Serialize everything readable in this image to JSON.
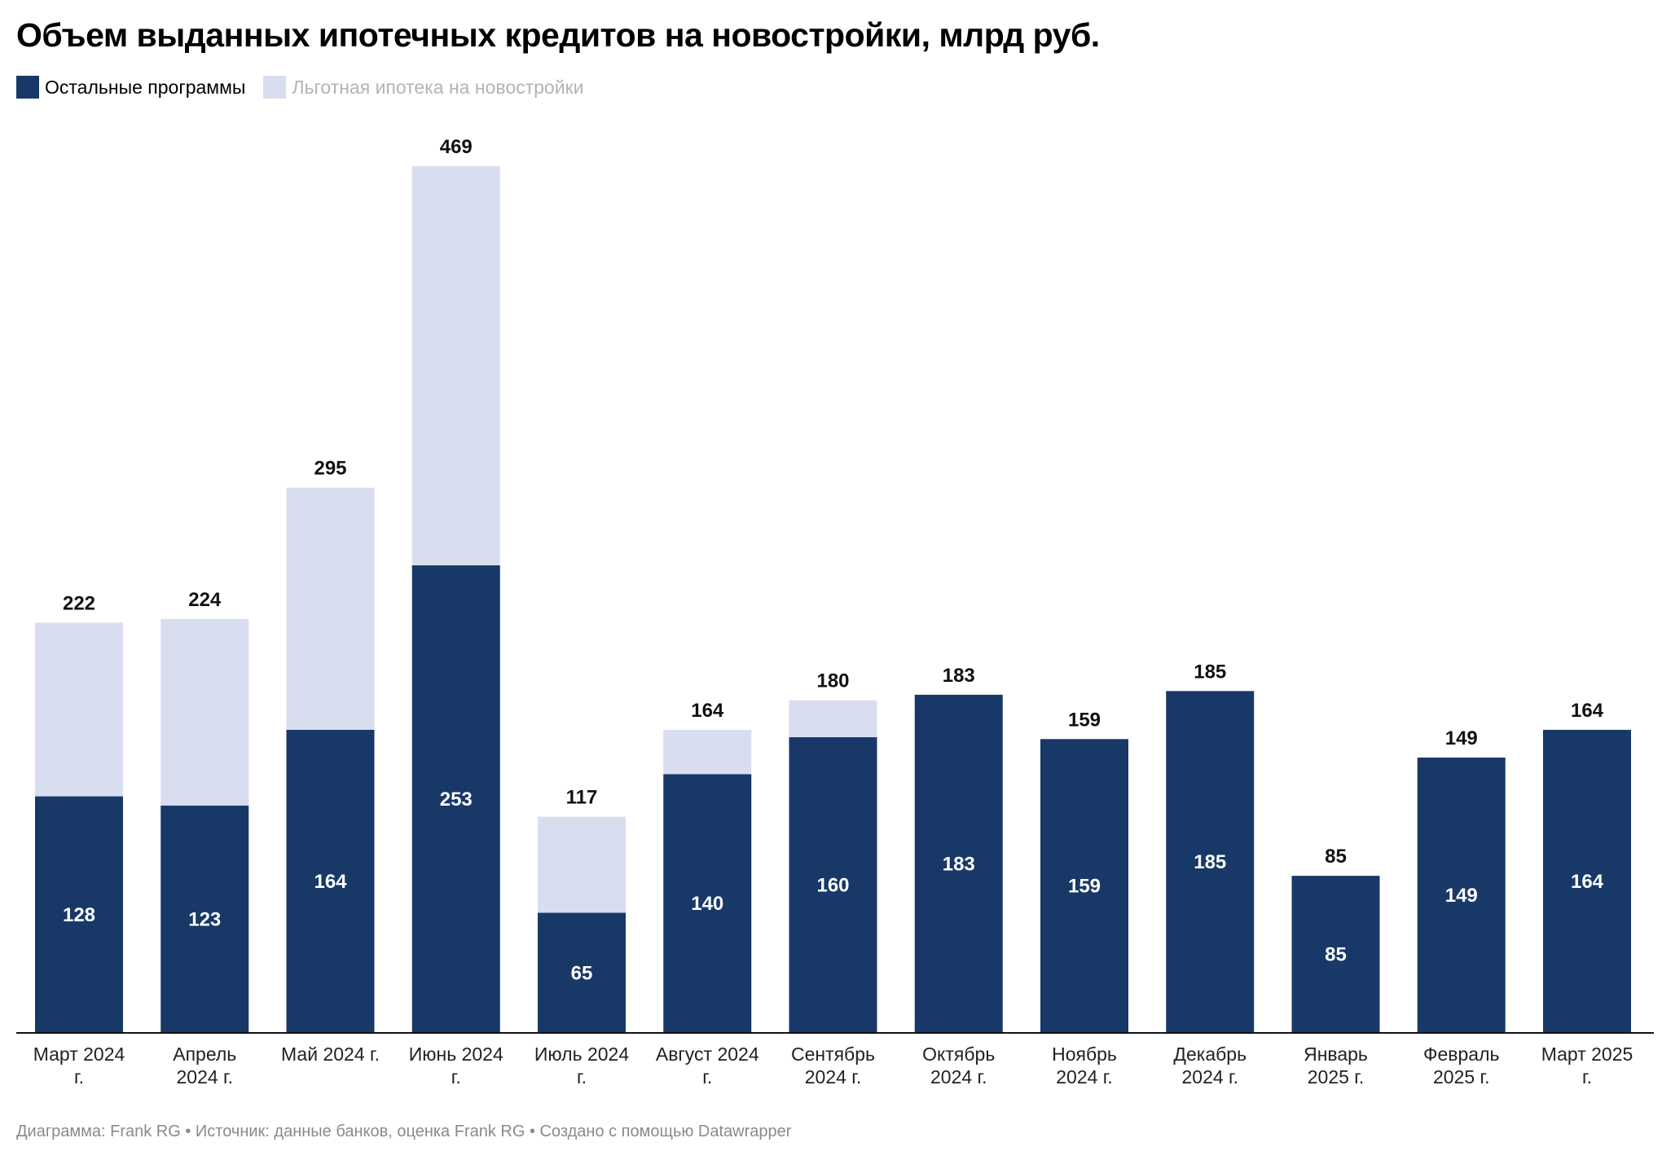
{
  "title": "Объем выданных ипотечных кредитов на новостройки, млрд руб.",
  "footer": "Диаграмма: Frank RG • Источник: данные банков, оценка Frank RG • Создано с помощью Datawrapper",
  "colors": {
    "other": "#183868",
    "preferential": "#d8def0",
    "inside_label": "#ffffff",
    "total_label": "#111111",
    "axis": "#111111"
  },
  "chart_data": {
    "type": "bar",
    "stacked": true,
    "legend_position": "top-left",
    "grid": false,
    "categories": [
      [
        "Март 2024",
        "г."
      ],
      [
        "Апрель",
        "2024 г."
      ],
      [
        "Май 2024 г."
      ],
      [
        "Июнь 2024",
        "г."
      ],
      [
        "Июль 2024",
        "г."
      ],
      [
        "Август 2024",
        "г."
      ],
      [
        "Сентябрь",
        "2024 г."
      ],
      [
        "Октябрь",
        "2024 г."
      ],
      [
        "Ноябрь",
        "2024 г."
      ],
      [
        "Декабрь",
        "2024 г."
      ],
      [
        "Январь",
        "2025 г."
      ],
      [
        "Февраль",
        "2025 г."
      ],
      [
        "Март 2025",
        "г."
      ]
    ],
    "series": [
      {
        "name": "Остальные программы",
        "values": [
          128,
          123,
          164,
          253,
          65,
          140,
          160,
          183,
          159,
          185,
          85,
          149,
          164
        ]
      },
      {
        "name": "Льготная ипотека на новостройки",
        "values": [
          94,
          101,
          131,
          216,
          52,
          24,
          20,
          0,
          0,
          0,
          0,
          0,
          0
        ]
      }
    ],
    "totals": [
      222,
      224,
      295,
      469,
      117,
      164,
      180,
      183,
      159,
      185,
      85,
      149,
      164
    ],
    "ylim": [
      0,
      469
    ]
  }
}
